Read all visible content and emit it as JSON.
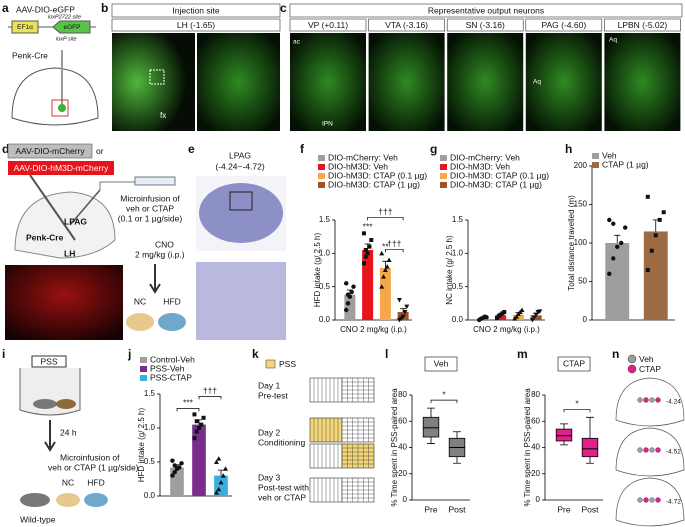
{
  "labels": [
    "a",
    "b",
    "c",
    "d",
    "e",
    "f",
    "g",
    "h",
    "i",
    "j",
    "k",
    "l",
    "m",
    "n"
  ],
  "panel_a": {
    "vector": "AAV-DIO-eGFP",
    "promoter": "EF1α",
    "gene": "eGFP",
    "site1": "loxP2722 site",
    "site2": "loxP site",
    "mouse": "Penk-Cre"
  },
  "panel_b": {
    "header": "Injection site",
    "region": "LH (-1.65)",
    "fx": "fx"
  },
  "panel_c": {
    "header": "Representative output neurons",
    "regions": [
      "VP (+0.11)",
      "VTA (-3.16)",
      "SN (-3.16)",
      "PAG (-4.60)",
      "LPBN (-5.02)"
    ],
    "marks": [
      "ac",
      "IPN",
      "Aq",
      "Aq"
    ]
  },
  "panel_d": {
    "vector1": "AAV-DIO-mCherry",
    "or": "or",
    "vector2": "AAV-DIO-hM3D-mCherry",
    "infusion": [
      "Microinfusion of",
      "veh or CTAP",
      "(0.1 or 1 µg/side)"
    ],
    "cno": [
      "CNO",
      "2 mg/kg (i.p.)"
    ],
    "site": "LPAG",
    "mouse": "Penk-Cre",
    "region": "LH",
    "nc": "NC",
    "hfd": "HFD"
  },
  "panel_e": {
    "title": [
      "LPAG",
      "(-4.24~-4.72)"
    ]
  },
  "panel_i": {
    "box": "PSS",
    "time": "24 h",
    "infusion": [
      "Microinfusion of",
      "veh or CTAP (1 µg/side)"
    ],
    "nc": "NC",
    "hfd": "HFD",
    "mouse": "Wild-type"
  },
  "panel_k": {
    "legend": "PSS",
    "days": [
      [
        "Day 1",
        "Pre-test"
      ],
      [
        "Day 2",
        "Conditioning"
      ],
      [
        "Day 3",
        "Post-test with",
        "veh or CTAP"
      ]
    ]
  },
  "panel_n": {
    "legend": [
      "Veh",
      "CTAP"
    ],
    "levels": [
      "-4.24",
      "-4.52",
      "-4.72"
    ]
  },
  "chart_data": [
    {
      "type": "bar",
      "ylabel": "HFD intake (g/ 2.5 h)",
      "xlabel": "CNO 2 mg/kg (i.p.)",
      "categories": [
        "DIO-mCherry: Veh",
        "DIO-hM3D: Veh",
        "DIO-hM3D: CTAP (0.1 µg)",
        "DIO-hM3D: CTAP (1 µg)"
      ],
      "colors": [
        "#9e9e9e",
        "#e8141c",
        "#f5a84a",
        "#a0522d"
      ],
      "values": [
        0.38,
        1.05,
        0.78,
        0.12
      ],
      "errors": [
        0.07,
        0.09,
        0.1,
        0.05
      ],
      "points": [
        [
          0.15,
          0.25,
          0.35,
          0.42,
          0.5,
          0.55,
          0.38
        ],
        [
          0.85,
          0.95,
          1.0,
          1.1,
          1.2,
          1.3,
          1.05
        ],
        [
          0.5,
          0.65,
          0.75,
          0.8,
          0.9,
          1.0
        ],
        [
          0.0,
          0.02,
          0.05,
          0.12,
          0.2,
          0.3
        ]
      ],
      "ylim": [
        0,
        1.5
      ],
      "yticks": [
        {
          "value": 0,
          "label": "0.0"
        },
        0.5,
        {
          "value": 1,
          "label": "1.0"
        },
        1.5
      ],
      "annotations": [
        "***",
        "**",
        "†††",
        "†††"
      ],
      "legend": "top"
    },
    {
      "type": "bar",
      "ylabel": "NC intake (g/ 2.5 h)",
      "xlabel": "CNO 2 mg/kg (i.p.)",
      "categories": [
        "DIO-mCherry: Veh",
        "DIO-hM3D: Veh",
        "DIO-hM3D: CTAP (0.1 µg)",
        "DIO-hM3D: CTAP (1 µg)"
      ],
      "colors": [
        "#9e9e9e",
        "#e8141c",
        "#f5a84a",
        "#a0522d"
      ],
      "values": [
        0.03,
        0.07,
        0.08,
        0.07
      ],
      "errors": [
        0.01,
        0.02,
        0.03,
        0.03
      ],
      "points": [
        [
          0.0,
          0.02,
          0.03,
          0.05,
          0.04
        ],
        [
          0.03,
          0.06,
          0.08,
          0.1,
          0.12
        ],
        [
          0.02,
          0.05,
          0.09,
          0.12,
          0.15
        ],
        [
          0.0,
          0.04,
          0.08,
          0.12,
          0.13
        ]
      ],
      "ylim": [
        0,
        1.5
      ],
      "yticks": [
        {
          "value": 0,
          "label": "0.0"
        },
        0.5,
        {
          "value": 1,
          "label": "1.0"
        },
        1.5
      ],
      "annotations": [],
      "legend": "top"
    },
    {
      "type": "bar",
      "ylabel": "Total distance travelled (m)",
      "categories": [
        "Veh",
        "CTAP (1 µg)"
      ],
      "colors": [
        "#9e9e9e",
        "#9c6b43"
      ],
      "values": [
        100,
        115
      ],
      "errors": [
        10,
        15
      ],
      "points": [
        [
          60,
          80,
          95,
          100,
          120,
          130,
          125
        ],
        [
          65,
          90,
          110,
          130,
          140,
          160
        ]
      ],
      "ylim": [
        0,
        200
      ],
      "yticks": [
        0,
        50,
        100,
        150,
        200
      ],
      "annotations": [],
      "legend": "top"
    },
    {
      "type": "bar",
      "ylabel": "HFD intake (g/ 2.5 h)",
      "categories": [
        "Control-Veh",
        "PSS-Veh",
        "PSS-CTAP"
      ],
      "colors": [
        "#9e9e9e",
        "#7b2d8e",
        "#3aaee0"
      ],
      "values": [
        0.42,
        1.05,
        0.3
      ],
      "errors": [
        0.04,
        0.07,
        0.08
      ],
      "points": [
        [
          0.3,
          0.35,
          0.4,
          0.42,
          0.48,
          0.52,
          0.45
        ],
        [
          0.85,
          0.95,
          1.0,
          1.05,
          1.15,
          1.2,
          1.1
        ],
        [
          0.05,
          0.1,
          0.2,
          0.3,
          0.4,
          0.5,
          0.55
        ]
      ],
      "ylim": [
        0,
        1.5
      ],
      "yticks": [
        {
          "value": 0,
          "label": "0.0"
        },
        0.5,
        {
          "value": 1,
          "label": "1.0"
        },
        1.5
      ],
      "annotations": [
        "***",
        "†††"
      ],
      "legend": "top"
    },
    {
      "type": "box",
      "title": "Veh",
      "ylabel": "% Time spent in PSS-paired area",
      "categories": [
        "Pre",
        "Post"
      ],
      "color": "#808080",
      "boxes": [
        {
          "min": 43,
          "q1": 48,
          "median": 55,
          "q3": 63,
          "max": 70
        },
        {
          "min": 28,
          "q1": 33,
          "median": 40,
          "q3": 47,
          "max": 52
        }
      ],
      "ylim": [
        0,
        80
      ],
      "yticks": [
        0,
        20,
        40,
        60,
        80
      ],
      "annotations": [
        "*"
      ]
    },
    {
      "type": "box",
      "title": "CTAP",
      "ylabel": "% Time spent in PSS-paired area",
      "categories": [
        "Pre",
        "Post"
      ],
      "color": "#e0218a",
      "boxes": [
        {
          "min": 42,
          "q1": 45,
          "median": 49,
          "q3": 54,
          "max": 58
        },
        {
          "min": 28,
          "q1": 33,
          "median": 39,
          "q3": 47,
          "max": 63
        }
      ],
      "ylim": [
        0,
        80
      ],
      "yticks": [
        0,
        20,
        40,
        60,
        80
      ],
      "annotations": [
        "*"
      ]
    }
  ]
}
